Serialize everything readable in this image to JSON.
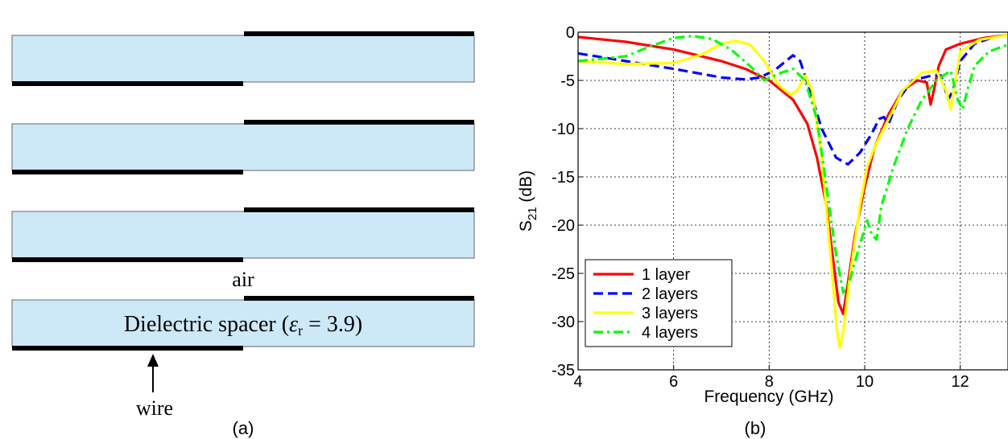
{
  "figure_a": {
    "caption": "(a)",
    "air_label": "air",
    "spacer_label": "Dielectric spacer (",
    "epsilon_symbol": "ε",
    "epsilon_sub": "r",
    "epsilon_value": " = 3.9)",
    "wire_label": "wire",
    "layer_count": 4,
    "colors": {
      "dielectric": "#cde9f7",
      "wire": "#000000"
    }
  },
  "figure_b": {
    "caption": "(b)",
    "chart_data": {
      "type": "line",
      "xlabel": "Frequency (GHz)",
      "ylabel_main": "S",
      "ylabel_sub": "21",
      "ylabel_unit": " (dB)",
      "xlim": [
        4,
        13
      ],
      "ylim": [
        -35,
        0
      ],
      "xticks": [
        4,
        6,
        8,
        10,
        12
      ],
      "yticks": [
        0,
        -5,
        -10,
        -15,
        -20,
        -25,
        -30,
        -35
      ],
      "grid": true,
      "legend_position": "bottom-left",
      "series": [
        {
          "name": "1 layer",
          "color": "#ff0000",
          "dash": "solid",
          "points": [
            [
              4,
              -0.5
            ],
            [
              5,
              -1.0
            ],
            [
              6,
              -1.8
            ],
            [
              7,
              -3.0
            ],
            [
              7.5,
              -3.8
            ],
            [
              8,
              -5.0
            ],
            [
              8.5,
              -7.0
            ],
            [
              8.8,
              -9.5
            ],
            [
              9.0,
              -13.0
            ],
            [
              9.2,
              -18.0
            ],
            [
              9.35,
              -24.0
            ],
            [
              9.45,
              -28.0
            ],
            [
              9.55,
              -29.2
            ],
            [
              9.65,
              -26.0
            ],
            [
              9.8,
              -21.0
            ],
            [
              10.0,
              -16.0
            ],
            [
              10.2,
              -12.0
            ],
            [
              10.5,
              -8.5
            ],
            [
              10.8,
              -6.0
            ],
            [
              11.1,
              -5.0
            ],
            [
              11.3,
              -5.2
            ],
            [
              11.38,
              -7.5
            ],
            [
              11.45,
              -6.0
            ],
            [
              11.55,
              -3.5
            ],
            [
              11.7,
              -1.8
            ],
            [
              12,
              -1.2
            ],
            [
              12.5,
              -0.6
            ],
            [
              13,
              -0.3
            ]
          ]
        },
        {
          "name": "2 layers",
          "color": "#0000ff",
          "dash": "dashed",
          "points": [
            [
              4,
              -2.2
            ],
            [
              5,
              -3.0
            ],
            [
              6,
              -3.8
            ],
            [
              7,
              -4.7
            ],
            [
              7.5,
              -4.9
            ],
            [
              7.8,
              -4.7
            ],
            [
              8.1,
              -4.0
            ],
            [
              8.35,
              -3.0
            ],
            [
              8.5,
              -2.4
            ],
            [
              8.65,
              -3.0
            ],
            [
              8.85,
              -6.0
            ],
            [
              9.1,
              -10.0
            ],
            [
              9.4,
              -13.0
            ],
            [
              9.65,
              -13.7
            ],
            [
              9.9,
              -12.5
            ],
            [
              10.15,
              -10.5
            ],
            [
              10.3,
              -9.0
            ],
            [
              10.4,
              -8.8
            ],
            [
              10.5,
              -9.5
            ],
            [
              10.7,
              -7.0
            ],
            [
              11.0,
              -5.0
            ],
            [
              11.4,
              -4.5
            ],
            [
              11.6,
              -4.5
            ],
            [
              11.75,
              -7.0
            ],
            [
              11.85,
              -6.0
            ],
            [
              12.0,
              -3.0
            ],
            [
              12.3,
              -1.2
            ],
            [
              12.7,
              -0.5
            ],
            [
              13,
              -0.3
            ]
          ]
        },
        {
          "name": "3 layers",
          "color": "#ffff00",
          "dash": "solid",
          "points": [
            [
              4,
              -3.0
            ],
            [
              5,
              -3.3
            ],
            [
              6,
              -3.2
            ],
            [
              6.6,
              -2.3
            ],
            [
              7.0,
              -1.2
            ],
            [
              7.3,
              -0.9
            ],
            [
              7.6,
              -1.3
            ],
            [
              7.9,
              -3.0
            ],
            [
              8.2,
              -5.5
            ],
            [
              8.45,
              -6.5
            ],
            [
              8.6,
              -6.0
            ],
            [
              8.75,
              -4.5
            ],
            [
              8.9,
              -6.0
            ],
            [
              9.1,
              -13.0
            ],
            [
              9.3,
              -24.0
            ],
            [
              9.42,
              -31.0
            ],
            [
              9.48,
              -32.7
            ],
            [
              9.55,
              -31.0
            ],
            [
              9.7,
              -25.0
            ],
            [
              9.9,
              -18.0
            ],
            [
              10.05,
              -14.0
            ],
            [
              10.2,
              -12.0
            ],
            [
              10.5,
              -9.0
            ],
            [
              10.8,
              -6.0
            ],
            [
              11.2,
              -4.2
            ],
            [
              11.5,
              -4.0
            ],
            [
              11.7,
              -6.0
            ],
            [
              11.8,
              -8.0
            ],
            [
              11.9,
              -5.0
            ],
            [
              12.0,
              -2.0
            ],
            [
              12.4,
              -0.8
            ],
            [
              13,
              -0.3
            ]
          ]
        },
        {
          "name": "4 layers",
          "color": "#00ff00",
          "dash": "dashdot",
          "points": [
            [
              4,
              -3.0
            ],
            [
              5,
              -2.5
            ],
            [
              5.5,
              -1.5
            ],
            [
              6,
              -0.6
            ],
            [
              6.4,
              -0.4
            ],
            [
              6.8,
              -0.7
            ],
            [
              7.2,
              -1.8
            ],
            [
              7.6,
              -3.5
            ],
            [
              7.9,
              -5.0
            ],
            [
              8.2,
              -4.3
            ],
            [
              8.5,
              -3.8
            ],
            [
              8.75,
              -5.0
            ],
            [
              9.0,
              -9.0
            ],
            [
              9.2,
              -16.0
            ],
            [
              9.4,
              -23.0
            ],
            [
              9.55,
              -27.0
            ],
            [
              9.7,
              -25.5
            ],
            [
              9.9,
              -22.0
            ],
            [
              10.05,
              -19.5
            ],
            [
              10.15,
              -21.0
            ],
            [
              10.25,
              -21.5
            ],
            [
              10.35,
              -18.0
            ],
            [
              10.6,
              -14.0
            ],
            [
              10.9,
              -10.0
            ],
            [
              11.2,
              -7.0
            ],
            [
              11.5,
              -5.0
            ],
            [
              11.8,
              -4.0
            ],
            [
              11.95,
              -7.0
            ],
            [
              12.05,
              -8.0
            ],
            [
              12.15,
              -6.0
            ],
            [
              12.3,
              -3.5
            ],
            [
              12.6,
              -2.0
            ],
            [
              13,
              -1.3
            ]
          ]
        }
      ]
    }
  }
}
